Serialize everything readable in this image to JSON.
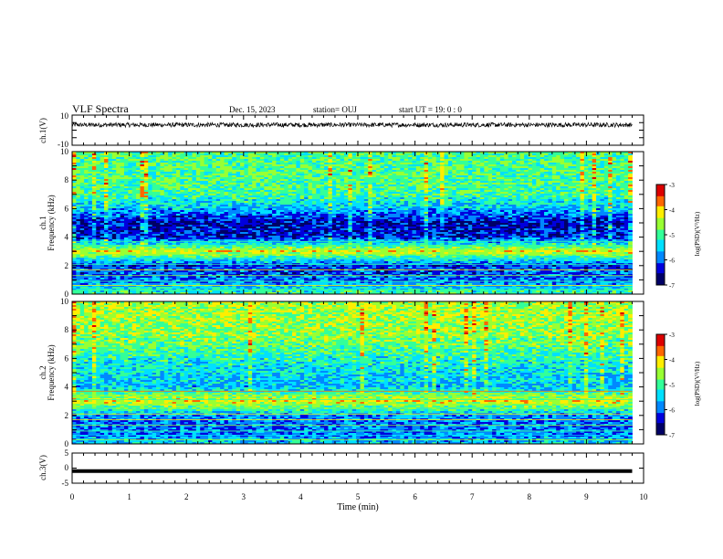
{
  "header": {
    "title": "VLF Spectra",
    "date": "Dec. 15, 2023",
    "station": "station= OUJ",
    "start": "start  UT =   19: 0   : 0"
  },
  "colors": {
    "spectrogram_scale": [
      "#000066",
      "#0000dd",
      "#0088ff",
      "#00e0ff",
      "#33ff99",
      "#99ff33",
      "#ffee00",
      "#ff6600",
      "#dd0000",
      "#ffffff"
    ],
    "trace": "#000000"
  },
  "chart_data": [
    {
      "type": "line",
      "name": "ch1-waveform",
      "ylabel": "ch.1(V)",
      "ylim": [
        -10,
        10
      ],
      "y_ticks": [
        "10",
        "-10"
      ],
      "x": [
        0,
        1,
        2,
        3,
        4,
        5,
        6,
        7,
        8,
        9,
        9.8
      ],
      "y": [
        3.5,
        3.5,
        3.5,
        3.5,
        3.5,
        3.5,
        3.5,
        3.5,
        3.5,
        3.5,
        3.5
      ],
      "noise_band": 1.5
    },
    {
      "type": "heatmap",
      "name": "ch1-spectrogram",
      "ylabel": "ch.1",
      "ylabel2": "Frequency  (kHz)",
      "ylim": [
        0,
        10
      ],
      "y_ticks": [
        "0",
        "2",
        "4",
        "6",
        "8",
        "10"
      ],
      "xlim": [
        0,
        10
      ],
      "data_x_max": 9.8,
      "colorbar": {
        "label": "log(PSD)(V²/Hz)",
        "ticks": [
          "-3",
          "-4",
          "-5",
          "-6",
          "-7"
        ],
        "range": [
          -7,
          -3
        ]
      },
      "freq_profile_kHz": [
        0,
        1,
        2,
        3,
        4,
        5,
        6,
        7,
        8,
        9,
        10
      ],
      "log_psd_profile": [
        -5.0,
        -6.0,
        -6.2,
        -4.2,
        -6.3,
        -6.5,
        -5.6,
        -5.0,
        -4.9,
        -4.9,
        -4.9
      ]
    },
    {
      "type": "heatmap",
      "name": "ch2-spectrogram",
      "ylabel": "ch.2",
      "ylabel2": "Frequency  (kHz)",
      "ylim": [
        0,
        10
      ],
      "y_ticks": [
        "0",
        "2",
        "4",
        "6",
        "8",
        "10"
      ],
      "xlim": [
        0,
        10
      ],
      "data_x_max": 9.8,
      "colorbar": {
        "label": "log(PSD)(V²/Hz)",
        "ticks": [
          "-3",
          "-4",
          "-5",
          "-6",
          "-7"
        ],
        "range": [
          -7,
          -3
        ]
      },
      "freq_profile_kHz": [
        0,
        1,
        2,
        3,
        4,
        5,
        6,
        7,
        8,
        9,
        10
      ],
      "log_psd_profile": [
        -5.5,
        -6.0,
        -5.8,
        -4.2,
        -5.6,
        -5.4,
        -5.2,
        -4.8,
        -4.6,
        -4.5,
        -4.5
      ]
    },
    {
      "type": "line",
      "name": "ch3-waveform",
      "ylabel": "ch.3(V)",
      "ylim": [
        -5,
        5
      ],
      "y_ticks": [
        "5",
        "0",
        "-5"
      ],
      "x": [
        0,
        9.8
      ],
      "y": [
        -1,
        -1
      ]
    }
  ],
  "x_axis": {
    "label": "Time  (min)",
    "ticks": [
      "0",
      "1",
      "2",
      "3",
      "4",
      "5",
      "6",
      "7",
      "8",
      "9",
      "10"
    ],
    "range": [
      0,
      10
    ]
  }
}
